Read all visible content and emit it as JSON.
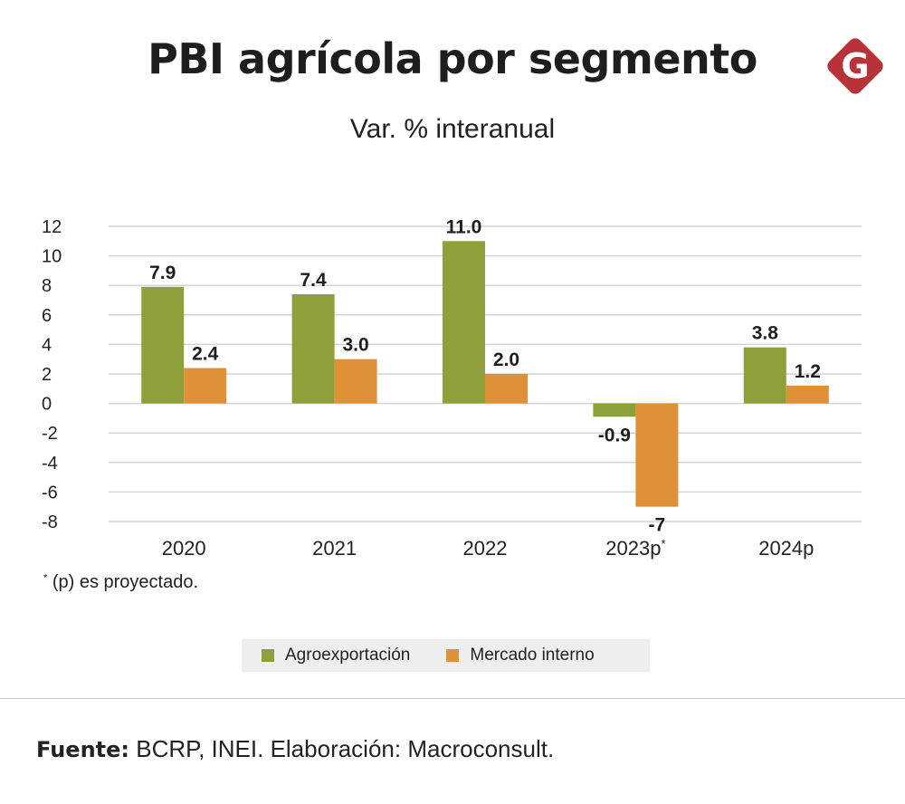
{
  "header": {
    "title": "PBI agrícola por segmento",
    "subtitle": "Var. % interanual",
    "logo_letter": "G",
    "logo_color": "#b8323a"
  },
  "chart_data": {
    "type": "bar",
    "title": "PBI agrícola por segmento",
    "subtitle": "Var. % interanual",
    "xlabel": "",
    "ylabel": "",
    "ylim": [
      -8,
      12
    ],
    "yticks": [
      12,
      10,
      8,
      6,
      4,
      2,
      0,
      -2,
      -4,
      -6,
      -8
    ],
    "grid": true,
    "categories": [
      "2020",
      "2021",
      "2022",
      "2023p",
      "2024p"
    ],
    "category_marks": [
      "",
      "",
      "",
      "*",
      ""
    ],
    "series": [
      {
        "name": "Agroexportación",
        "color": "#8ea03a",
        "values": [
          7.9,
          7.4,
          11.0,
          -0.9,
          3.8
        ],
        "labels": [
          "7.9",
          "7.4",
          "11.0",
          "-0.9",
          "3.8"
        ]
      },
      {
        "name": "Mercado interno",
        "color": "#de9137",
        "values": [
          2.4,
          3.0,
          2.0,
          -7,
          1.2
        ],
        "labels": [
          "2.4",
          "3.0",
          "2.0",
          "-7",
          "1.2"
        ]
      }
    ]
  },
  "footnote": {
    "mark": "*",
    "text": " (p) es proyectado."
  },
  "source": {
    "label": "Fuente:",
    "text": " BCRP, INEI. Elaboración: Macroconsult."
  }
}
